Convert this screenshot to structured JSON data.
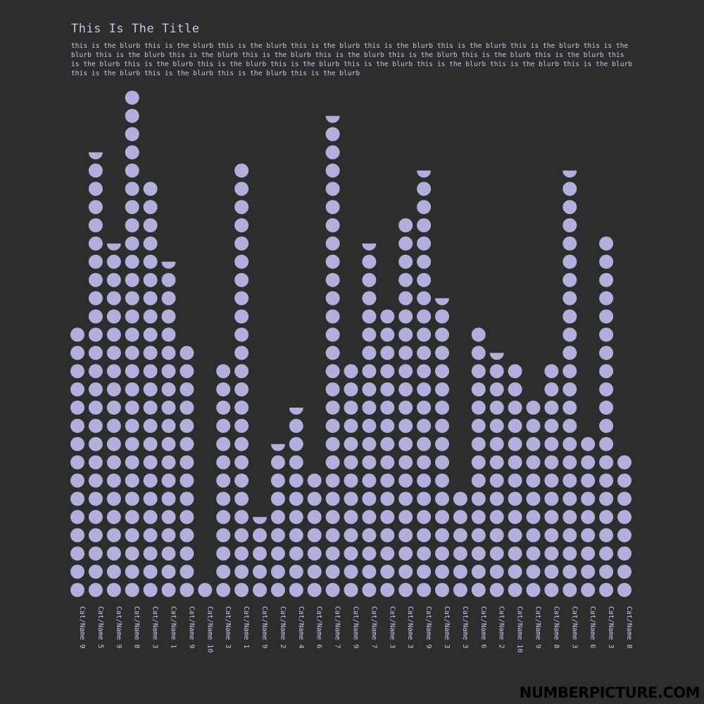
{
  "title": "This Is The Title",
  "blurb": "this is the blurb this is the blurb this is the blurb this is the blurb this is the blurb this is the blurb this is the blurb this is the blurb this is the blurb this is the blurb this is the blurb this is the blurb this is the blurb this is the blurb this is the blurb this is the blurb this is the blurb this is the blurb this is the blurb this is the blurb this is the blurb this is the blurb this is the blurb this is the blurb this is the blurb this is the blurb this is the blurb",
  "footer": "NUMBERPICTURE.COM",
  "colors": {
    "background": "#2d2d2d",
    "dot": "#b3aedb",
    "text": "#c9c3e6",
    "footer": "#000000"
  },
  "chart_data": {
    "type": "bar",
    "style": "dot-stack",
    "title": "This Is The Title",
    "categories": [
      "Cat/Name 9",
      "Cat/Name 5",
      "Cat/Name 9",
      "Cat/Name 8",
      "Cat/Name 3",
      "Cat/Name 1",
      "Cat/Name 9",
      "Cat/Name 10",
      "Cat/Name 3",
      "Cat/Name 1",
      "Cat/Name 9",
      "Cat/Name 2",
      "Cat/Name 4",
      "Cat/Name 6",
      "Cat/Name 7",
      "Cat/Name 9",
      "Cat/Name 7",
      "Cat/Name 3",
      "Cat/Name 3",
      "Cat/Name 9",
      "Cat/Name 3",
      "Cat/Name 3",
      "Cat/Name 6",
      "Cat/Name 2",
      "Cat/Name 10",
      "Cat/Name 9",
      "Cat/Name 8",
      "Cat/Name 3",
      "Cat/Name 6",
      "Cat/Name 3",
      "Cat/Name 8"
    ],
    "values": [
      15,
      24.5,
      19.5,
      28,
      23,
      18.5,
      14,
      1,
      13,
      24,
      4.5,
      8.5,
      10.5,
      7,
      26.5,
      13,
      19.5,
      16,
      21,
      23.5,
      16.5,
      6,
      15,
      13.5,
      13,
      11,
      13,
      23.5,
      9,
      20,
      8
    ]
  }
}
